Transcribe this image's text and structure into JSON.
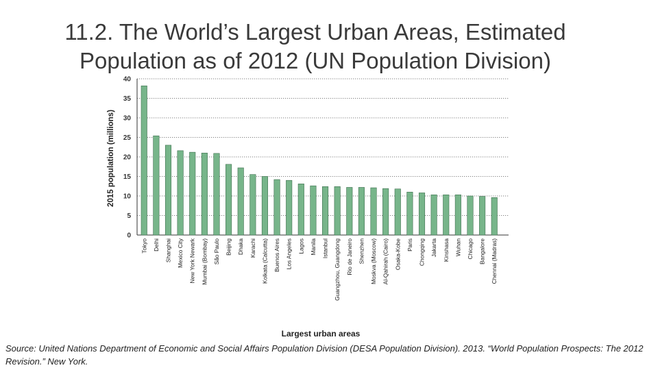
{
  "title": {
    "line1": "11.2. The World’s Largest Urban Areas, Estimated",
    "line2": "Population as of 2012 (UN Population Division)"
  },
  "source_note": "Source: United Nations Department of Economic and Social Affairs Population Division (DESA Population Division). 2013. “World Population Prospects: The 2012 Revision.” New York.",
  "colors": {
    "bar": "#77b58a",
    "bar_stroke": "#3f6f4f",
    "axis": "#333333",
    "grid": "#555555"
  },
  "chart_data": {
    "type": "bar",
    "title": "11.2. The World’s Largest Urban Areas, Estimated Population as of 2012 (UN Population Division)",
    "xlabel": "Largest urban areas",
    "ylabel": "2015 population (millions)",
    "ylim": [
      0,
      40
    ],
    "yticks": [
      0,
      5,
      10,
      15,
      20,
      25,
      30,
      35,
      40
    ],
    "grid": "horizontal dotted",
    "categories": [
      "Tokyo",
      "Delhi",
      "Shanghai",
      "Mexico City",
      "New York Newark",
      "Mumbai (Bombay)",
      "São Paulo",
      "Beijing",
      "Dhaka",
      "Karachi",
      "Kolkata (Calcutta)",
      "Buenos Aires",
      "Los Angeles",
      "Lagos",
      "Manila",
      "Istanbul",
      "Guangzhou, Guangdong",
      "Rio de Janeiro",
      "Shenzhen",
      "Moskva (Moscow)",
      "Al-Qahirah (Cairo)",
      "Osaka-Kobe",
      "Paris",
      "Chongqing",
      "Jakarta",
      "Kinshasa",
      "Wuhan",
      "Chicago",
      "Bangalore",
      "Chennai (Madras)"
    ],
    "values": [
      38.2,
      25.4,
      23.0,
      21.6,
      21.2,
      21.0,
      20.9,
      18.1,
      17.2,
      15.5,
      15.0,
      14.2,
      14.0,
      13.1,
      12.6,
      12.4,
      12.4,
      12.2,
      12.2,
      12.1,
      11.9,
      11.8,
      11.0,
      10.8,
      10.3,
      10.3,
      10.3,
      10.0,
      9.9,
      9.6
    ]
  }
}
